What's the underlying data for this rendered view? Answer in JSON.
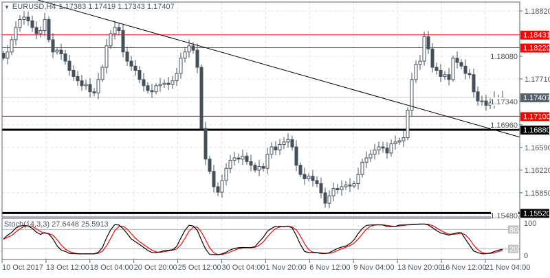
{
  "header": {
    "symbol": "EURUSD,H4",
    "ohlc": "1.17383 1.17419 1.17343 1.17407"
  },
  "colors": {
    "candle": "#44505c",
    "level_red": "#ff0000",
    "level_black": "#000000",
    "current": "#56626d",
    "stoch_main": "#000000",
    "stoch_signal": "#ff0000",
    "grid": "#e4e4e4"
  },
  "chart_data": [
    {
      "type": "candlestick",
      "title": "EURUSD,H4",
      "ylim": [
        1.1548,
        1.19
      ],
      "y_ticks": [
        "1.18820",
        "1.18080",
        "1.17710",
        "1.17340",
        "1.16960",
        "1.16590",
        "1.16220",
        "1.15850",
        "1.15480"
      ],
      "x_ticks": [
        "10 Oct 2017",
        "13 Oct 12:00",
        "18 Oct 04:00",
        "20 Oct 20:00",
        "25 Oct 12:00",
        "30 Oct 04:00",
        "1 Nov 20:00",
        "6 Nov 12:00",
        "9 Nov 04:00",
        "13 Nov 20:00",
        "16 Nov 12:00",
        "21 Nov 04:00"
      ],
      "grid": true,
      "closes": [
        1.1805,
        1.1815,
        1.1835,
        1.1855,
        1.1868,
        1.1872,
        1.1866,
        1.1855,
        1.1845,
        1.185,
        1.1868,
        1.1835,
        1.1815,
        1.1818,
        1.1812,
        1.18,
        1.1785,
        1.1775,
        1.1768,
        1.176,
        1.1762,
        1.175,
        1.1748,
        1.177,
        1.179,
        1.1825,
        1.1845,
        1.1855,
        1.185,
        1.1815,
        1.18,
        1.1792,
        1.1785,
        1.177,
        1.176,
        1.1752,
        1.175,
        1.176,
        1.1762,
        1.1764,
        1.1762,
        1.1768,
        1.178,
        1.1805,
        1.1815,
        1.1825,
        1.1818,
        1.179,
        1.169,
        1.164,
        1.162,
        1.1595,
        1.1586,
        1.1605,
        1.1625,
        1.1638,
        1.1642,
        1.164,
        1.1645,
        1.1636,
        1.163,
        1.1622,
        1.1628,
        1.1625,
        1.1648,
        1.166,
        1.1655,
        1.1664,
        1.1668,
        1.1672,
        1.166,
        1.163,
        1.1615,
        1.1608,
        1.1612,
        1.1605,
        1.16,
        1.1585,
        1.1568,
        1.158,
        1.1592,
        1.159,
        1.1595,
        1.1598,
        1.1596,
        1.16,
        1.1615,
        1.1635,
        1.1642,
        1.1648,
        1.1655,
        1.166,
        1.1658,
        1.165,
        1.1665,
        1.1668,
        1.167,
        1.1675,
        1.172,
        1.177,
        1.1795,
        1.18,
        1.184,
        1.182,
        1.179,
        1.1785,
        1.1775,
        1.1778,
        1.177,
        1.1805,
        1.1798,
        1.1792,
        1.178,
        1.1778,
        1.175,
        1.1735,
        1.1735,
        1.1728,
        1.1732,
        1.174,
        1.1738,
        1.17407
      ],
      "levels": [
        {
          "label": "1.18431",
          "value": 1.18431,
          "style": "red"
        },
        {
          "label": "1.18220",
          "value": 1.1822,
          "style": "red"
        },
        {
          "label": "1.17100",
          "value": 1.171,
          "style": "red"
        },
        {
          "label": "1.16880",
          "value": 1.1688,
          "style": "black"
        },
        {
          "label": "1.15520",
          "value": 1.1552,
          "style": "black"
        }
      ],
      "current_price": {
        "label": "1.17407",
        "value": 1.17407
      },
      "trendline": {
        "from": 1.19,
        "to": 1.1676
      }
    },
    {
      "type": "line",
      "title": "Stoch(14,3,3) 27.6448 25.5913",
      "indicator": "Stochastic",
      "params": [
        14,
        3,
        3
      ],
      "main": 27.6448,
      "signal": 25.5913,
      "ylim": [
        0,
        100
      ],
      "y_ticks": [
        "100",
        "0"
      ],
      "level_labels": [
        "80",
        "20"
      ],
      "levels": [
        80,
        20
      ]
    }
  ]
}
